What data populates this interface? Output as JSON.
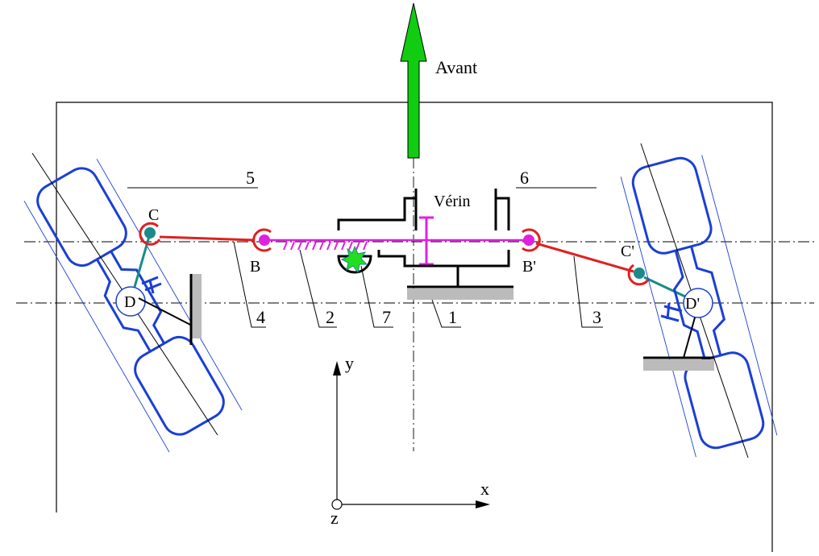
{
  "labels": {
    "avant": "Avant",
    "verin": "Vérin",
    "c": "C",
    "c_prime": "C'",
    "b": "B",
    "b_prime": "B'",
    "d": "D",
    "d_prime": "D'",
    "x_axis": "x",
    "y_axis": "y",
    "z_axis": "z"
  },
  "part_numbers": {
    "p1": "1",
    "p2": "2",
    "p3": "3",
    "p4": "4",
    "p5": "5",
    "p6": "6",
    "p7": "7"
  },
  "colors": {
    "wheel": "#1a3fd6",
    "tie_rod": "#e02020",
    "rack": "#e020e0",
    "arm": "#1a8a8a",
    "pinion": "#22dd22",
    "arrow": "#11cc11",
    "ground": "#bbbbbb",
    "line": "#000000"
  }
}
